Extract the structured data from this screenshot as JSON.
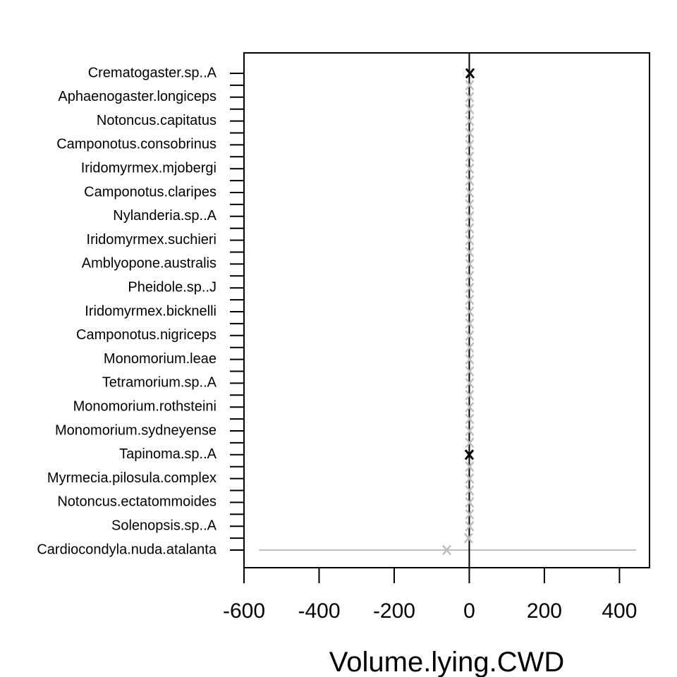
{
  "chart_data": {
    "type": "dot",
    "title": "",
    "xlabel": "Volume.lying.CWD",
    "ylabel": "",
    "xlim": [
      -600,
      480
    ],
    "xticks": [
      -600,
      -400,
      -200,
      0,
      200,
      400
    ],
    "reference_line_x": 0,
    "marker": "x",
    "colors": {
      "significant": "#000000",
      "nonsignificant": "#bdbdbd",
      "axis": "#000000"
    },
    "categories": [
      "Crematogaster.sp..A",
      "Aphaenogaster.longiceps",
      "Notoncus.capitatus",
      "Camponotus.consobrinus",
      "Iridomyrmex.mjobergi",
      "Camponotus.claripes",
      "Nylanderia.sp..A",
      "Iridomyrmex.suchieri",
      "Amblyopone.australis",
      "Pheidole.sp..J",
      "Iridomyrmex.bicknelli",
      "Camponotus.nigriceps",
      "Monomorium.leae",
      "Tetramorium.sp..A",
      "Monomorium.rothsteini",
      "Monomorium.sydneyense",
      "Tapinoma.sp..A",
      "Myrmecia.pilosula.complex",
      "Notoncus.ectatommoides",
      "Solenopsis.sp..A",
      "Cardiocondyla.nuda.atalanta"
    ],
    "points": [
      {
        "label": "Crematogaster.sp..A",
        "estimate": 2,
        "low": -2,
        "high": 6,
        "significant": true,
        "labeled": true
      },
      {
        "label": "",
        "estimate": 1,
        "low": -1,
        "high": 3,
        "significant": false,
        "labeled": false
      },
      {
        "label": "Aphaenogaster.longiceps",
        "estimate": 1,
        "low": -1,
        "high": 3,
        "significant": false,
        "labeled": true
      },
      {
        "label": "",
        "estimate": 1,
        "low": -1,
        "high": 3,
        "significant": false,
        "labeled": false
      },
      {
        "label": "Notoncus.capitatus",
        "estimate": 1,
        "low": -1,
        "high": 3,
        "significant": false,
        "labeled": true
      },
      {
        "label": "",
        "estimate": 1,
        "low": -1,
        "high": 3,
        "significant": false,
        "labeled": false
      },
      {
        "label": "Camponotus.consobrinus",
        "estimate": 1,
        "low": -1,
        "high": 3,
        "significant": false,
        "labeled": true
      },
      {
        "label": "",
        "estimate": 1,
        "low": -1,
        "high": 3,
        "significant": false,
        "labeled": false
      },
      {
        "label": "Iridomyrmex.mjobergi",
        "estimate": 1,
        "low": -1,
        "high": 3,
        "significant": false,
        "labeled": true
      },
      {
        "label": "",
        "estimate": 1,
        "low": -1,
        "high": 3,
        "significant": false,
        "labeled": false
      },
      {
        "label": "Camponotus.claripes",
        "estimate": 1,
        "low": -1,
        "high": 3,
        "significant": false,
        "labeled": true
      },
      {
        "label": "",
        "estimate": 1,
        "low": -1,
        "high": 3,
        "significant": false,
        "labeled": false
      },
      {
        "label": "Nylanderia.sp..A",
        "estimate": 1,
        "low": -1,
        "high": 3,
        "significant": false,
        "labeled": true
      },
      {
        "label": "",
        "estimate": 1,
        "low": -1,
        "high": 3,
        "significant": false,
        "labeled": false
      },
      {
        "label": "Iridomyrmex.suchieri",
        "estimate": 1,
        "low": -1,
        "high": 3,
        "significant": false,
        "labeled": true
      },
      {
        "label": "",
        "estimate": 1,
        "low": -1,
        "high": 3,
        "significant": false,
        "labeled": false
      },
      {
        "label": "Amblyopone.australis",
        "estimate": 1,
        "low": -1,
        "high": 3,
        "significant": false,
        "labeled": true
      },
      {
        "label": "",
        "estimate": 1,
        "low": -1,
        "high": 3,
        "significant": false,
        "labeled": false
      },
      {
        "label": "Pheidole.sp..J",
        "estimate": 1,
        "low": -1,
        "high": 3,
        "significant": false,
        "labeled": true
      },
      {
        "label": "",
        "estimate": 1,
        "low": -1,
        "high": 3,
        "significant": false,
        "labeled": false
      },
      {
        "label": "Iridomyrmex.bicknelli",
        "estimate": 1,
        "low": -1,
        "high": 3,
        "significant": false,
        "labeled": true
      },
      {
        "label": "",
        "estimate": 1,
        "low": -1,
        "high": 3,
        "significant": false,
        "labeled": false
      },
      {
        "label": "Camponotus.nigriceps",
        "estimate": 1,
        "low": -1,
        "high": 3,
        "significant": false,
        "labeled": true
      },
      {
        "label": "",
        "estimate": 1,
        "low": -1,
        "high": 3,
        "significant": false,
        "labeled": false
      },
      {
        "label": "Monomorium.leae",
        "estimate": 1,
        "low": -1,
        "high": 3,
        "significant": false,
        "labeled": true
      },
      {
        "label": "",
        "estimate": 1,
        "low": -1,
        "high": 3,
        "significant": false,
        "labeled": false
      },
      {
        "label": "Tetramorium.sp..A",
        "estimate": 1,
        "low": -1,
        "high": 3,
        "significant": false,
        "labeled": true
      },
      {
        "label": "",
        "estimate": 1,
        "low": -1,
        "high": 3,
        "significant": false,
        "labeled": false
      },
      {
        "label": "Monomorium.rothsteini",
        "estimate": 1,
        "low": -1,
        "high": 3,
        "significant": false,
        "labeled": true
      },
      {
        "label": "",
        "estimate": 1,
        "low": -1,
        "high": 3,
        "significant": false,
        "labeled": false
      },
      {
        "label": "Monomorium.sydneyense",
        "estimate": 1,
        "low": -1,
        "high": 3,
        "significant": false,
        "labeled": true
      },
      {
        "label": "",
        "estimate": 1,
        "low": -1,
        "high": 3,
        "significant": false,
        "labeled": false
      },
      {
        "label": "Tapinoma.sp..A",
        "estimate": 0,
        "low": -2,
        "high": 2,
        "significant": true,
        "labeled": true
      },
      {
        "label": "",
        "estimate": 1,
        "low": -1,
        "high": 3,
        "significant": false,
        "labeled": false
      },
      {
        "label": "Myrmecia.pilosula.complex",
        "estimate": 1,
        "low": -1,
        "high": 3,
        "significant": false,
        "labeled": true
      },
      {
        "label": "",
        "estimate": 1,
        "low": -1,
        "high": 3,
        "significant": false,
        "labeled": false
      },
      {
        "label": "Notoncus.ectatommoides",
        "estimate": 1,
        "low": -1,
        "high": 3,
        "significant": false,
        "labeled": true
      },
      {
        "label": "",
        "estimate": 1,
        "low": -1,
        "high": 3,
        "significant": false,
        "labeled": false
      },
      {
        "label": "Solenopsis.sp..A",
        "estimate": 1,
        "low": -1,
        "high": 3,
        "significant": false,
        "labeled": true
      },
      {
        "label": "",
        "estimate": -2,
        "low": -4,
        "high": 0,
        "significant": false,
        "labeled": false
      },
      {
        "label": "Cardiocondyla.nuda.atalanta",
        "estimate": -60,
        "low": -560,
        "high": 445,
        "significant": false,
        "labeled": true
      }
    ]
  }
}
